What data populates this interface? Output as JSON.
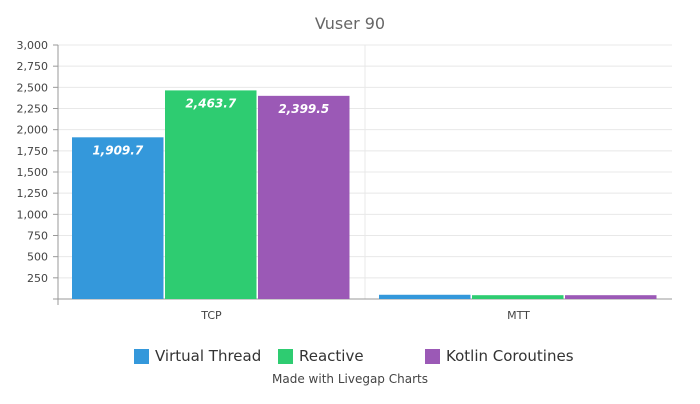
{
  "chart_data": {
    "type": "bar",
    "title": "Vuser 90",
    "xlabel": "",
    "ylabel": "",
    "ylim": [
      0,
      3000
    ],
    "yticks": [
      250,
      500,
      750,
      1000,
      1250,
      1500,
      1750,
      2000,
      2250,
      2500,
      2750,
      3000
    ],
    "ytick_labels": [
      "250",
      "500",
      "750",
      "1,000",
      "1,250",
      "1,500",
      "1,750",
      "2,000",
      "2,250",
      "2,500",
      "2,750",
      "3,000"
    ],
    "categories": [
      "TCP",
      "MTT"
    ],
    "grid": true,
    "legend_position": "bottom",
    "series": [
      {
        "name": "Virtual Thread",
        "color": "#3498db",
        "values": [
          1909.7,
          50
        ],
        "labels": [
          "1,909.7",
          ""
        ]
      },
      {
        "name": "Reactive",
        "color": "#2ecc71",
        "values": [
          2463.7,
          45
        ],
        "labels": [
          "2,463.7",
          ""
        ]
      },
      {
        "name": "Kotlin Coroutines",
        "color": "#9b59b6",
        "values": [
          2399.5,
          45
        ],
        "labels": [
          "2,399.5",
          ""
        ]
      }
    ]
  },
  "credit": "Made with Livegap Charts"
}
